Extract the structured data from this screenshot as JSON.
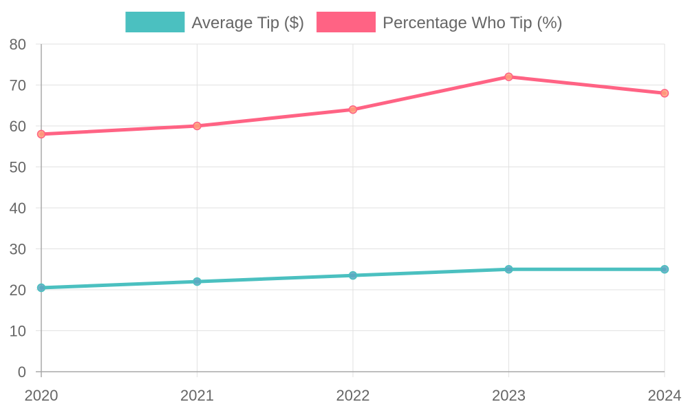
{
  "chart_data": {
    "type": "line",
    "categories": [
      "2020",
      "2021",
      "2022",
      "2023",
      "2024"
    ],
    "series": [
      {
        "name": "Average Tip ($)",
        "values": [
          20.5,
          22,
          23.5,
          25,
          25
        ],
        "color": "#4bc0c0",
        "point_fill": "#5aa7c1"
      },
      {
        "name": "Percentage Who Tip (%)",
        "values": [
          58,
          60,
          64,
          72,
          68
        ],
        "color": "#ff6384",
        "point_fill": "#ff9f7a"
      }
    ],
    "ylim": [
      0,
      80
    ],
    "y_ticks": [
      "0",
      "10",
      "20",
      "30",
      "40",
      "50",
      "60",
      "70",
      "80"
    ],
    "grid": true,
    "legend_position": "top"
  },
  "colors": {
    "grid": "#e1e1e1",
    "axis": "#a8a8a8",
    "text": "#666666"
  }
}
